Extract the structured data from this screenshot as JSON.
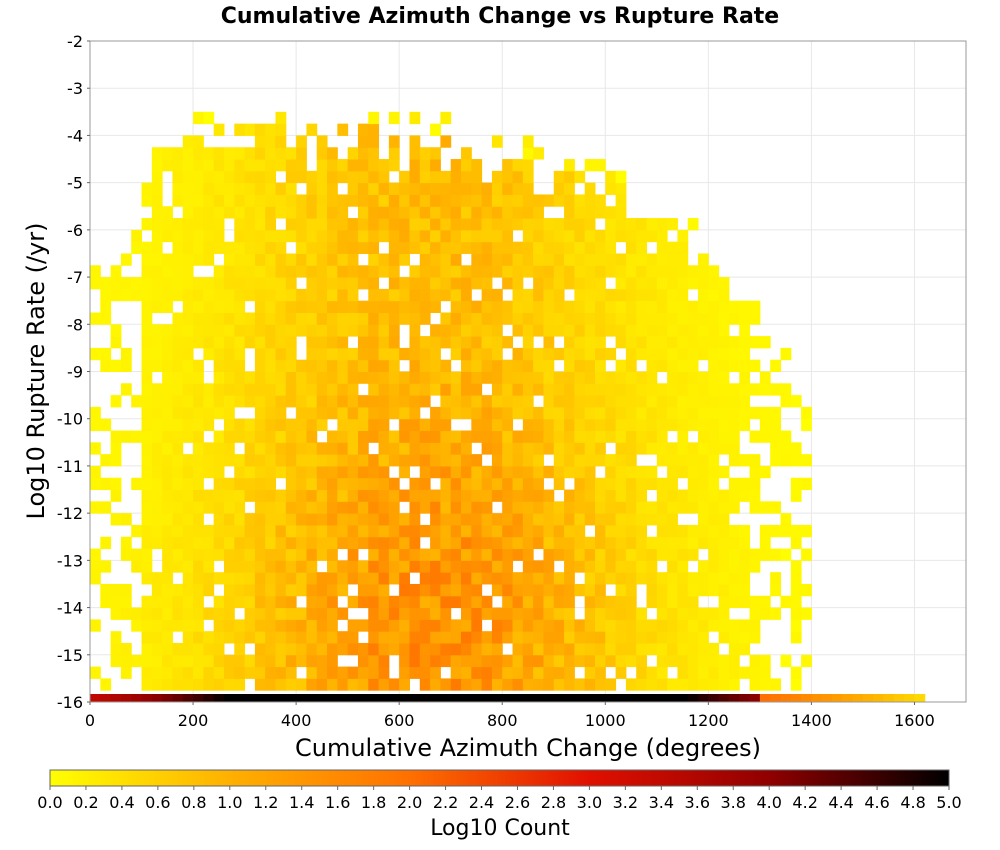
{
  "chart_data": {
    "type": "heatmap",
    "title": "Cumulative Azimuth Change vs Rupture Rate",
    "xlabel": "Cumulative Azimuth Change (degrees)",
    "ylabel": "Log10 Rupture Rate (/yr)",
    "colorbar_label": "Log10 Count",
    "xlim": [
      0,
      1700
    ],
    "ylim": [
      -16,
      -2
    ],
    "x_ticks": [
      0,
      200,
      400,
      600,
      800,
      1000,
      1200,
      1400,
      1600
    ],
    "y_ticks": [
      -2,
      -3,
      -4,
      -5,
      -6,
      -7,
      -8,
      -9,
      -10,
      -11,
      -12,
      -13,
      -14,
      -15,
      -16
    ],
    "colorbar_range": [
      0.0,
      5.0
    ],
    "colorbar_ticks": [
      "0.0",
      "0.2",
      "0.4",
      "0.6",
      "0.8",
      "1.0",
      "1.2",
      "1.4",
      "1.6",
      "1.8",
      "2.0",
      "2.2",
      "2.4",
      "2.6",
      "2.8",
      "3.0",
      "3.2",
      "3.4",
      "3.6",
      "3.8",
      "4.0",
      "4.2",
      "4.4",
      "4.6",
      "4.8",
      "5.0"
    ],
    "colormap": [
      "#ffff00",
      "#ffb000",
      "#ff7000",
      "#e01000",
      "#900000",
      "#000000"
    ],
    "grid": true,
    "bin_width_x": 20,
    "bin_height_y": 0.25,
    "bottom_row": {
      "y": -16,
      "x_start": 0,
      "x_end": 1620,
      "peak_x": 700,
      "peak_value": 5.0
    },
    "main_cloud": {
      "x_min": 0,
      "x_max": 1400,
      "y_min": -16,
      "y_max": -3.3,
      "peak_x": 650,
      "peak_value": 1.6
    }
  }
}
